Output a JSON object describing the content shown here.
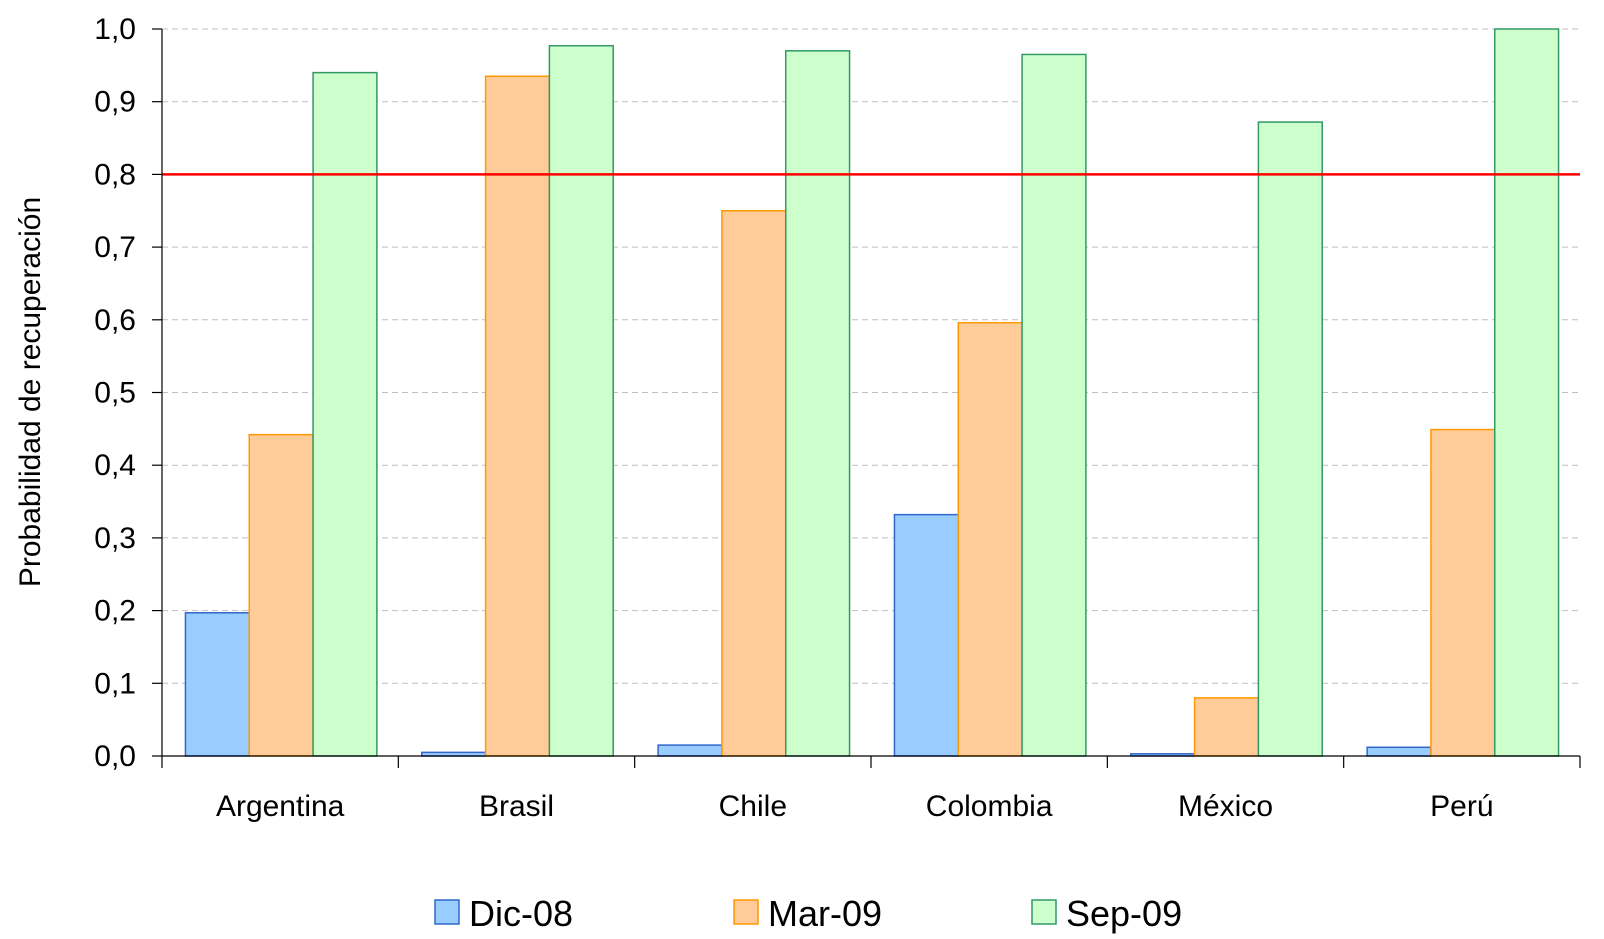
{
  "chart_data": {
    "type": "bar",
    "title": "",
    "xlabel": "",
    "ylabel": "Probabilidad de recuperación",
    "ylim": [
      0,
      1.0
    ],
    "yticks": [
      "0,0",
      "0,1",
      "0,2",
      "0,3",
      "0,4",
      "0,5",
      "0,6",
      "0,7",
      "0,8",
      "0,9",
      "1,0"
    ],
    "categories": [
      "Argentina",
      "Brasil",
      "Chile",
      "Colombia",
      "México",
      "Perú"
    ],
    "series": [
      {
        "name": "Dic-08",
        "values": [
          0.197,
          0.005,
          0.015,
          0.332,
          0.003,
          0.012
        ],
        "fill": "#99CCFF",
        "stroke": "#3366CC"
      },
      {
        "name": "Mar-09",
        "values": [
          0.442,
          0.935,
          0.75,
          0.596,
          0.08,
          0.449
        ],
        "fill": "#FFCC99",
        "stroke": "#FF9900"
      },
      {
        "name": "Sep-09",
        "values": [
          0.94,
          0.977,
          0.97,
          0.965,
          0.872,
          1.0
        ],
        "fill": "#CCFFCC",
        "stroke": "#339966"
      }
    ],
    "reference_line": {
      "value": 0.8,
      "color": "#FF0000"
    },
    "grid": true,
    "grid_style": "dashed",
    "legend_position": "bottom"
  }
}
